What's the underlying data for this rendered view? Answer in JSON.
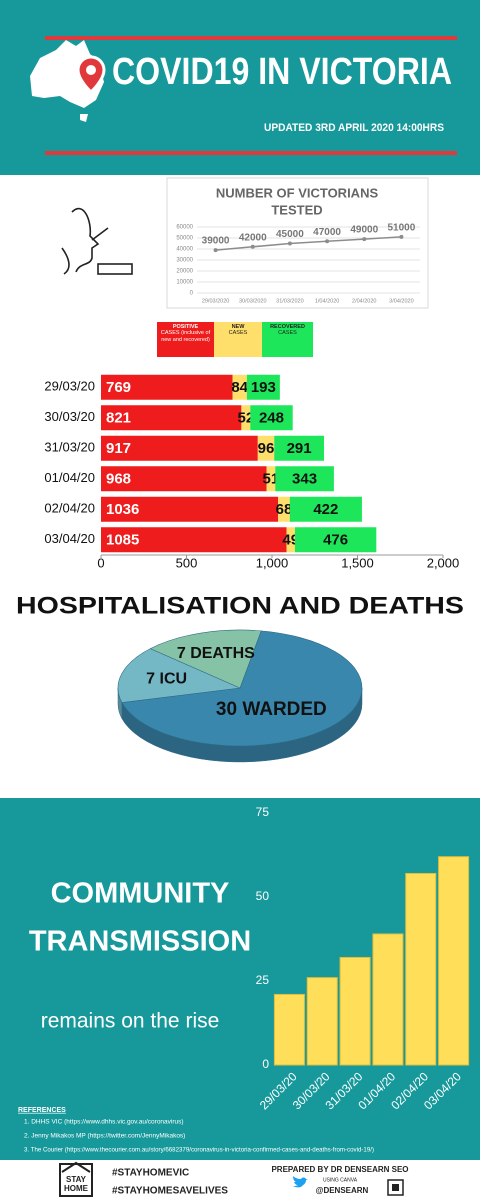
{
  "header": {
    "title": "COVID19 IN VICTORIA",
    "updated": "UPDATED  3RD APRIL 2020  14:00HRS"
  },
  "chart_data": [
    {
      "type": "line",
      "title": [
        "NUMBER OF VICTORIANS",
        "TESTED"
      ],
      "categories": [
        "29/03/2020",
        "30/03/2020",
        "31/03/2020",
        "1/04/2020",
        "2/04/2020",
        "3/04/2020"
      ],
      "values": [
        39000,
        42000,
        45000,
        47000,
        49000,
        51000
      ],
      "color": "#8c8c8c",
      "ylim": [
        0,
        60000
      ],
      "yticks": [
        0,
        10000,
        20000,
        30000,
        40000,
        50000,
        60000
      ],
      "grid": true
    },
    {
      "type": "bar",
      "orientation": "horizontal",
      "stacked": true,
      "categories": [
        "29/03/20",
        "30/03/20",
        "31/03/20",
        "01/04/20",
        "02/04/20",
        "03/04/20"
      ],
      "series": [
        {
          "name": "POSITIVE",
          "caption": "CASES (inclusive of new and recovered)",
          "color": "#ee1c1c",
          "values": [
            769,
            821,
            917,
            968,
            1036,
            1085
          ]
        },
        {
          "name": "NEW",
          "caption": "CASES",
          "color": "#ffdf6b",
          "values": [
            84,
            52,
            96,
            51,
            68,
            49
          ]
        },
        {
          "name": "RECOVERED",
          "caption": "CASES",
          "color": "#1ee65a",
          "values": [
            193,
            248,
            291,
            343,
            422,
            476
          ]
        }
      ],
      "xlim": [
        0,
        2000
      ],
      "xticks": [
        0,
        500,
        {
          "value": 1000,
          "label": "1,000"
        },
        {
          "value": 1500,
          "label": "1,500"
        },
        {
          "value": 2000,
          "label": "2,000"
        }
      ]
    },
    {
      "type": "pie",
      "title": "HOSPITALISATION AND DEATHS",
      "values": [
        30,
        7,
        7
      ],
      "value_labels": [
        "30 WARDED",
        "7 ICU",
        "7 DEATHS"
      ],
      "colors": [
        "#3a87ad",
        "#74b8c6",
        "#86c3a6"
      ]
    },
    {
      "type": "bar",
      "title": [
        "COMMUNITY",
        "TRANSMISSION"
      ],
      "subtitle": "remains on the rise",
      "categories": [
        "29/03/20",
        "30/03/20",
        "31/03/20",
        "01/04/20",
        "02/04/20",
        "03/04/20"
      ],
      "values": [
        21,
        26,
        32,
        39,
        57,
        62
      ],
      "color": "#ffde59",
      "ylim": [
        0,
        75
      ],
      "yticks": [
        0,
        25,
        50,
        75
      ]
    }
  ],
  "references": {
    "title": "REFERENCES",
    "items": [
      "1. DHHS VIC (https://www.dhhs.vic.gov.au/coronavirus)",
      "2. Jenny Mikakos MP (https://twitter.com/JennyMikakos)",
      "3. The Courier (https://www.thecourier.com.au/story/6682379/coronavirus-in-victoria-confirmed-cases-and-deaths-from-covid-19/)"
    ]
  },
  "footer": {
    "logo": [
      "STAY",
      "HOME"
    ],
    "hashtags": [
      "#STAYHOMEVIC",
      "#STAYHOMESAVELIVES"
    ],
    "prepared_by": "PREPARED BY DR DENSEARN SEO",
    "tool": "USING CANVA",
    "handle": "@DENSEARN"
  }
}
